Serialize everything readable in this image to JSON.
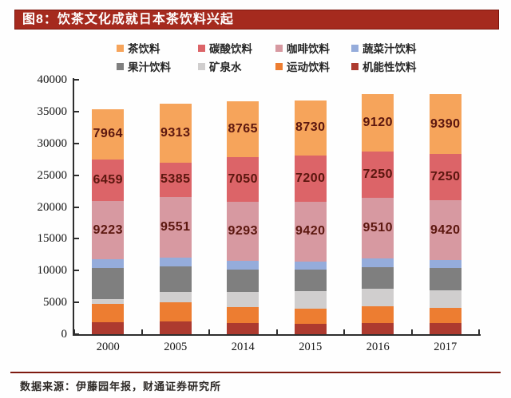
{
  "header": {
    "title": "图8：饮茶文化成就日本茶饮料兴起"
  },
  "footer": {
    "source": "数据来源：伊藤园年报，财通证券研究所"
  },
  "chart_data": {
    "type": "bar",
    "stacked": true,
    "title": "饮茶文化成就日本茶饮料兴起",
    "categories": [
      "2000",
      "2005",
      "2014",
      "2015",
      "2016",
      "2017"
    ],
    "ylim": [
      0,
      40000
    ],
    "y_ticks": [
      0,
      5000,
      10000,
      15000,
      20000,
      25000,
      30000,
      35000,
      40000
    ],
    "grid": false,
    "legend_position": "top",
    "legend_rows": [
      [
        "茶饮料",
        "碳酸饮料",
        "咖啡饮料",
        "蔬菜汁饮料"
      ],
      [
        "果汁饮料",
        "矿泉水",
        "运动饮料",
        "机能性饮料"
      ]
    ],
    "series": [
      {
        "name": "机能性饮料",
        "key": "functional-drinks",
        "color": "#AD3A2F",
        "labeled": false,
        "values": [
          1900,
          2000,
          1700,
          1600,
          1780,
          1750
        ]
      },
      {
        "name": "运动饮料",
        "key": "sports-drinks",
        "color": "#ED7D31",
        "labeled": false,
        "values": [
          2850,
          3000,
          2550,
          2400,
          2600,
          2400
        ]
      },
      {
        "name": "矿泉水",
        "key": "mineral-water",
        "color": "#D0CECE",
        "labeled": false,
        "values": [
          750,
          1700,
          2400,
          2750,
          2750,
          2700
        ]
      },
      {
        "name": "果汁饮料",
        "key": "fruit-juice",
        "color": "#7F7F7F",
        "labeled": false,
        "values": [
          4900,
          4000,
          3550,
          3400,
          3350,
          3500
        ]
      },
      {
        "name": "蔬菜汁饮料",
        "key": "vegetable-juice",
        "color": "#95ACDB",
        "labeled": false,
        "values": [
          1350,
          1350,
          1300,
          1300,
          1440,
          1290
        ]
      },
      {
        "name": "咖啡饮料",
        "key": "coffee-drinks",
        "color": "#D799A1",
        "labeled": true,
        "values": [
          9223,
          9551,
          9293,
          9420,
          9510,
          9420
        ]
      },
      {
        "name": "碳酸饮料",
        "key": "carbonated-drinks",
        "color": "#DC6468",
        "labeled": true,
        "values": [
          6459,
          5385,
          7050,
          7200,
          7250,
          7250
        ]
      },
      {
        "name": "茶饮料",
        "key": "tea-drinks",
        "color": "#F6A45B",
        "labeled": true,
        "values": [
          7964,
          9313,
          8765,
          8730,
          9120,
          9390
        ]
      }
    ]
  }
}
